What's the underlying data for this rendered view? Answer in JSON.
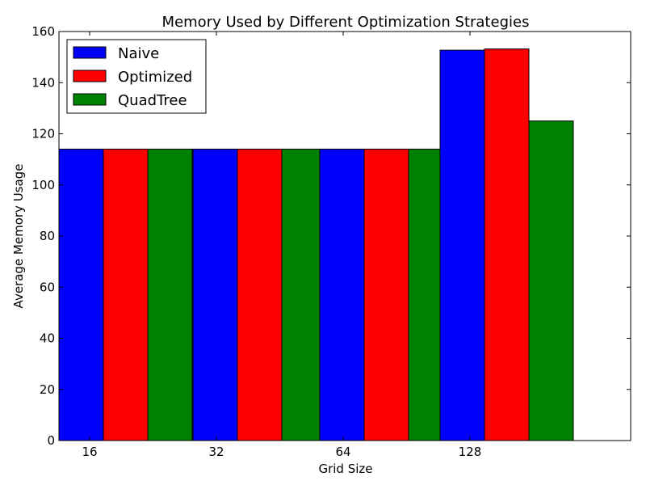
{
  "chart_data": {
    "type": "bar",
    "title": "Memory Used by Different Optimization Strategies",
    "xlabel": "Grid Size",
    "ylabel": "Average Memory Usage",
    "categories": [
      "16",
      "32",
      "64",
      "128"
    ],
    "x_ticks": [
      16,
      32,
      64,
      128
    ],
    "ylim": [
      0,
      160
    ],
    "yticks": [
      0,
      20,
      40,
      60,
      80,
      100,
      120,
      140,
      160
    ],
    "grid": false,
    "legend_position": "top-left",
    "series": [
      {
        "name": "Naive",
        "color": "#0000ff",
        "values": [
          114,
          114,
          114,
          152.7
        ]
      },
      {
        "name": "Optimized",
        "color": "#ff0000",
        "values": [
          114,
          114,
          114,
          153.2
        ]
      },
      {
        "name": "QuadTree",
        "color": "#008000",
        "values": [
          114,
          114,
          114,
          125
        ]
      }
    ]
  }
}
